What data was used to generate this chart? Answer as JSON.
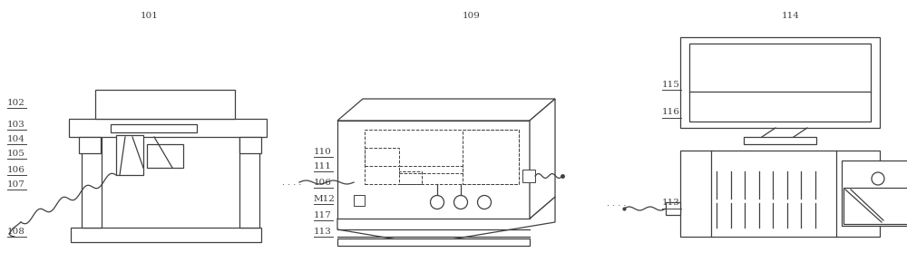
{
  "bg": "#ffffff",
  "lc": "#404040",
  "lw": 0.9,
  "fig_w": 10.0,
  "fig_h": 2.79,
  "dpi": 100,
  "xlim": [
    0,
    10
  ],
  "ylim": [
    0,
    2.79
  ]
}
